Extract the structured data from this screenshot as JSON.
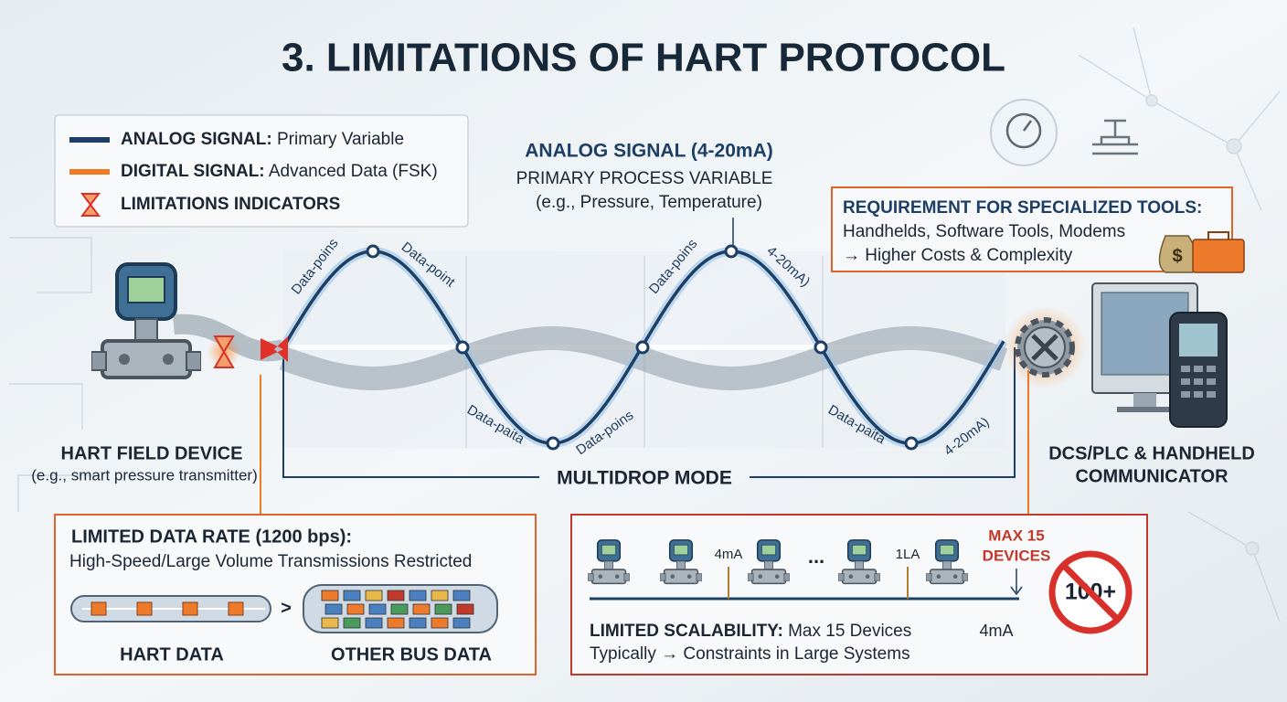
{
  "title": "3. LIMITATIONS OF HART PROTOCOL",
  "legend": {
    "items": [
      {
        "label": "ANALOG SIGNAL:",
        "text": "Primary Variable"
      },
      {
        "label": "DIGITAL SIGNAL:",
        "text": "Advanced Data (FSK)"
      },
      {
        "label": "LIMITATIONS INDICATORS"
      }
    ]
  },
  "analog_callout": {
    "heading": "ANALOG SIGNAL (4-20mA)",
    "lines": [
      "PRIMARY PROCESS VARIABLE",
      "(e.g., Pressure, Temperature)"
    ]
  },
  "wave_labels": [
    "Data-poins",
    "Data-point",
    "Data-paita",
    "Data-poins",
    "Data-poins",
    "4-20mA)",
    "Data-paita",
    "4-20mA)"
  ],
  "field_device": {
    "title": "HART FIELD DEVICE",
    "subtitle": "(e.g., smart pressure transmitter)"
  },
  "multidrop": "MULTIDROP MODE",
  "host": {
    "lines": [
      "DCS/PLC & HANDHELD",
      "COMMUNICATOR"
    ]
  },
  "tools": {
    "title": "REQUIREMENT FOR SPECIALIZED TOOLS:",
    "lines": [
      "Handhelds, Software Tools, Modems",
      "→ Higher Costs & Complexity"
    ],
    "icon_symbol": "$"
  },
  "data_rate": {
    "title": "LIMITED DATA RATE (1200 bps):",
    "subtitle": "High-Speed/Large Volume Transmissions Restricted",
    "comparison": ">",
    "left_label": "HART DATA",
    "right_label": "OTHER BUS DATA"
  },
  "scalability": {
    "current_labels": [
      "4mA",
      "1LA"
    ],
    "ellipsis": "...",
    "max_badge": [
      "MAX 15",
      "DEVICES"
    ],
    "excess": "100+",
    "title": "LIMITED SCALABILITY:",
    "text": "Max 15 Devices",
    "side_label": "4mA",
    "line2": "Typically → Constraints in Large Systems"
  }
}
